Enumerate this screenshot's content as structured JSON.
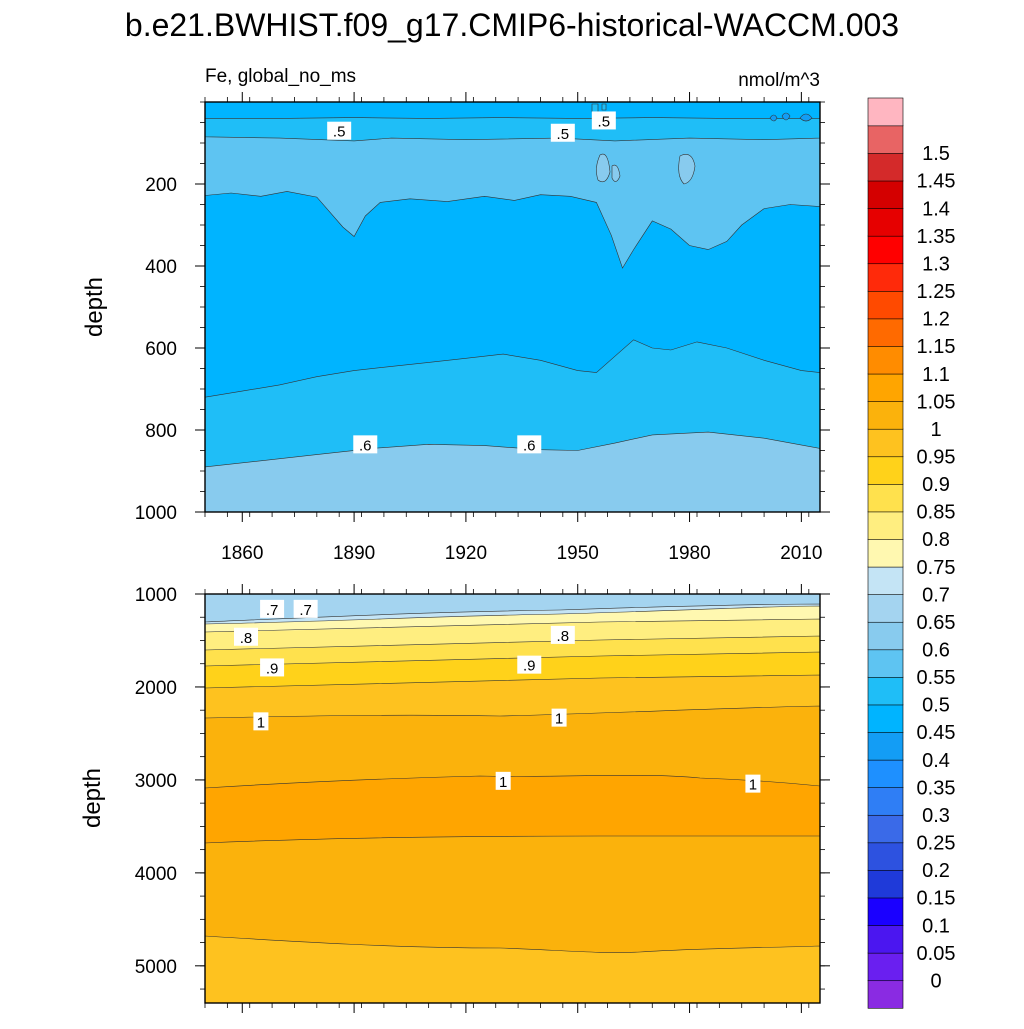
{
  "chart_data": {
    "type": "heatmap",
    "title": "b.e21.BWHIST.f09_g17.CMIP6-historical-WACCM.003",
    "variable_label": "Fe, global_no_ms",
    "units_label": "nmol/m^3",
    "x_range": [
      1850,
      2015
    ],
    "x_ticks": [
      1860,
      1890,
      1920,
      1950,
      1980,
      2010
    ],
    "x_tick_labels": [
      "1860",
      "1890",
      "1920",
      "1950",
      "1980",
      "2010"
    ],
    "colorbar": {
      "levels": [
        "0",
        "0.05",
        "0.1",
        "0.15",
        "0.2",
        "0.25",
        "0.3",
        "0.35",
        "0.4",
        "0.45",
        "0.5",
        "0.55",
        "0.6",
        "0.65",
        "0.7",
        "0.75",
        "0.8",
        "0.85",
        "0.9",
        "0.95",
        "1",
        "1.05",
        "1.1",
        "1.15",
        "1.2",
        "1.25",
        "1.3",
        "1.35",
        "1.4",
        "1.45",
        "1.5"
      ],
      "colors": [
        "#8a2be2",
        "#6a1ff0",
        "#4b16f0",
        "#1a00ff",
        "#1f3ad9",
        "#2d52e0",
        "#3a6ae8",
        "#2f7ef5",
        "#1e90ff",
        "#139df5",
        "#00b4ff",
        "#1fbef7",
        "#5ec4f2",
        "#88cbee",
        "#a4d4f0",
        "#c4e4f5",
        "#fff8b0",
        "#ffee80",
        "#ffe14d",
        "#ffd21a",
        "#fec21f",
        "#fbb20c",
        "#ffa500",
        "#ff8c00",
        "#ff6a00",
        "#ff4a00",
        "#ff2a0a",
        "#ff0000",
        "#e60000",
        "#d40000",
        "#d42a2a",
        "#e86464",
        "#ffb6c1"
      ]
    },
    "panels": [
      {
        "name": "upper",
        "ylabel": "depth",
        "y_range": [
          0,
          1000
        ],
        "y_ticks": [
          200,
          400,
          600,
          800,
          1000
        ],
        "y_tick_labels": [
          "200",
          "400",
          "600",
          "800",
          "1000"
        ],
        "contour_labels": [
          {
            "text": ".5",
            "year": 1886,
            "depth": 70
          },
          {
            "text": ".5",
            "year": 1946,
            "depth": 75
          },
          {
            "text": ".5",
            "year": 1957,
            "depth": 45
          },
          {
            "text": ".6",
            "year": 1893,
            "depth": 835
          },
          {
            "text": ".6",
            "year": 1937,
            "depth": 835
          }
        ],
        "bands": [
          {
            "color_index": 10,
            "bottom": [
              [
                1850,
                40
              ],
              [
                1870,
                40
              ],
              [
                1890,
                38
              ],
              [
                1910,
                40
              ],
              [
                1930,
                38
              ],
              [
                1950,
                40
              ],
              [
                1970,
                38
              ],
              [
                1990,
                40
              ],
              [
                2015,
                40
              ]
            ]
          },
          {
            "color_index": 11,
            "bottom": [
              [
                1850,
                85
              ],
              [
                1870,
                88
              ],
              [
                1890,
                95
              ],
              [
                1900,
                88
              ],
              [
                1920,
                92
              ],
              [
                1945,
                88
              ],
              [
                1960,
                95
              ],
              [
                1980,
                88
              ],
              [
                2000,
                92
              ],
              [
                2015,
                88
              ]
            ]
          },
          {
            "color_index": 12,
            "bottom": [
              [
                1850,
                228
              ],
              [
                1857,
                222
              ],
              [
                1865,
                230
              ],
              [
                1872,
                218
              ],
              [
                1880,
                232
              ],
              [
                1887,
                305
              ],
              [
                1890,
                328
              ],
              [
                1893,
                278
              ],
              [
                1897,
                245
              ],
              [
                1905,
                236
              ],
              [
                1915,
                243
              ],
              [
                1925,
                230
              ],
              [
                1933,
                240
              ],
              [
                1940,
                226
              ],
              [
                1948,
                230
              ],
              [
                1955,
                245
              ],
              [
                1959,
                325
              ],
              [
                1962,
                405
              ],
              [
                1965,
                360
              ],
              [
                1970,
                290
              ],
              [
                1975,
                310
              ],
              [
                1980,
                350
              ],
              [
                1985,
                360
              ],
              [
                1990,
                340
              ],
              [
                1994,
                300
              ],
              [
                2000,
                260
              ],
              [
                2007,
                250
              ],
              [
                2015,
                255
              ]
            ]
          },
          {
            "color_index": 10,
            "bottom": [
              [
                1850,
                720
              ],
              [
                1860,
                705
              ],
              [
                1870,
                690
              ],
              [
                1880,
                670
              ],
              [
                1890,
                655
              ],
              [
                1900,
                645
              ],
              [
                1910,
                635
              ],
              [
                1920,
                625
              ],
              [
                1930,
                615
              ],
              [
                1940,
                630
              ],
              [
                1950,
                655
              ],
              [
                1955,
                660
              ],
              [
                1960,
                620
              ],
              [
                1965,
                580
              ],
              [
                1970,
                600
              ],
              [
                1975,
                605
              ],
              [
                1982,
                585
              ],
              [
                1990,
                600
              ],
              [
                2000,
                630
              ],
              [
                2010,
                655
              ],
              [
                2015,
                660
              ]
            ]
          },
          {
            "color_index": 11,
            "bottom": [
              [
                1850,
                890
              ],
              [
                1865,
                875
              ],
              [
                1880,
                860
              ],
              [
                1895,
                845
              ],
              [
                1910,
                835
              ],
              [
                1925,
                838
              ],
              [
                1940,
                848
              ],
              [
                1950,
                850
              ],
              [
                1960,
                832
              ],
              [
                1970,
                812
              ],
              [
                1985,
                805
              ],
              [
                2000,
                820
              ],
              [
                2015,
                845
              ]
            ]
          },
          {
            "color_index": 13,
            "bottom": [
              [
                1850,
                1000
              ],
              [
                2015,
                1000
              ]
            ]
          }
        ]
      },
      {
        "name": "lower",
        "ylabel": "depth",
        "y_range": [
          1000,
          5400
        ],
        "y_ticks": [
          1000,
          2000,
          3000,
          4000,
          5000
        ],
        "y_tick_labels": [
          "1000",
          "2000",
          "3000",
          "4000",
          "5000"
        ],
        "contour_labels": [
          {
            "text": ".7",
            "year": 1868,
            "depth": 1160
          },
          {
            "text": ".7",
            "year": 1877,
            "depth": 1160
          },
          {
            "text": ".8",
            "year": 1861,
            "depth": 1460
          },
          {
            "text": ".8",
            "year": 1946,
            "depth": 1440
          },
          {
            "text": ".9",
            "year": 1868,
            "depth": 1790
          },
          {
            "text": ".9",
            "year": 1937,
            "depth": 1760
          },
          {
            "text": "1",
            "year": 1865,
            "depth": 2370
          },
          {
            "text": "1",
            "year": 1945,
            "depth": 2330
          },
          {
            "text": "1",
            "year": 1930,
            "depth": 3010
          },
          {
            "text": "1",
            "year": 1997,
            "depth": 3040
          }
        ]
      }
    ]
  }
}
